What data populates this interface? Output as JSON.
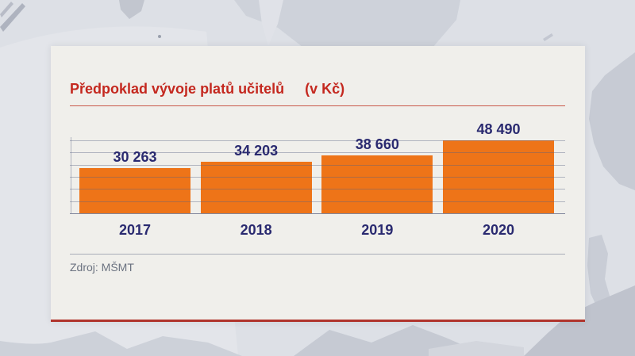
{
  "colors": {
    "card_bg": "#f0efeb",
    "title_red": "#c4281f",
    "rule_red": "#c9584a",
    "bottom_bar_red": "#b0342c",
    "bar_orange": "#ee7418",
    "label_navy": "#2a2a70",
    "grid_line": "rgba(88,98,132,0.42)",
    "baseline_color": "rgba(70,80,115,0.65)",
    "separator_gray": "rgba(110,118,140,0.55)",
    "source_gray": "#6b7280",
    "background_gray": "#dde0e6"
  },
  "chart_panel": {
    "title": "Předpoklad vývoje platů učitelů",
    "unit_label": "(v Kč)",
    "source_label": "Zdroj: MŠMT"
  },
  "chart_data": {
    "type": "bar",
    "title": "Předpoklad vývoje platů učitelů (v Kč)",
    "categories": [
      "2017",
      "2018",
      "2019",
      "2020"
    ],
    "values": [
      30263,
      34203,
      38660,
      48490
    ],
    "value_labels": [
      "30 263",
      "34 203",
      "38 660",
      "48 490"
    ],
    "xlabel": "",
    "ylabel": "",
    "ylim": [
      0,
      48490
    ],
    "grid": true,
    "horizontal_gridlines": 6,
    "legend": false,
    "bar_color": "#ee7418",
    "label_color": "#2a2a70",
    "source": "Zdroj: MŠMT"
  }
}
